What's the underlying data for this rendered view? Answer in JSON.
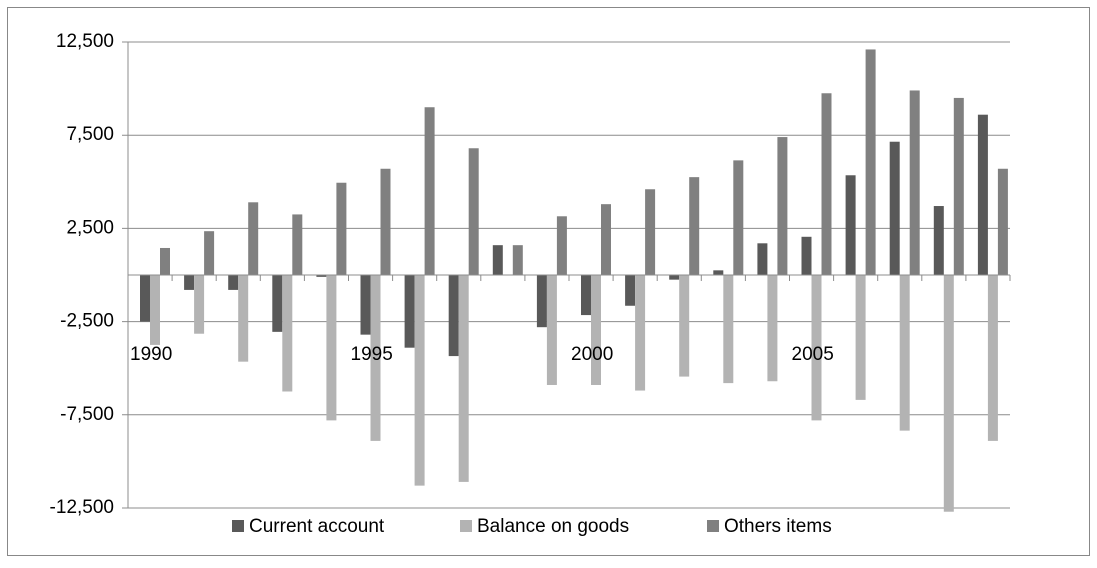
{
  "chart_data": {
    "type": "bar",
    "categories": [
      "1990",
      null,
      null,
      null,
      null,
      "1995",
      null,
      null,
      null,
      null,
      "2000",
      null,
      null,
      null,
      null,
      "2005",
      null,
      null,
      null,
      null
    ],
    "series": [
      {
        "name": "Current account",
        "color": "#595959",
        "values": [
          -2500,
          -800,
          -800,
          -3050,
          -100,
          -3200,
          -3900,
          -4350,
          1600,
          -2800,
          -2150,
          -1650,
          -250,
          250,
          1700,
          2050,
          5350,
          7150,
          3700,
          8600
        ]
      },
      {
        "name": "Balance on goods",
        "color": "#b3b3b3",
        "values": [
          -3750,
          -3150,
          -4650,
          -6250,
          -7800,
          -8900,
          -11300,
          -11100,
          0,
          -5900,
          -5900,
          -6200,
          -5450,
          -5800,
          -5700,
          -7800,
          -6700,
          -8350,
          -12700,
          -8900
        ]
      },
      {
        "name": "Others items",
        "color": "#808080",
        "values": [
          1450,
          2350,
          3900,
          3250,
          4950,
          5700,
          9000,
          6800,
          1600,
          3150,
          3800,
          4600,
          5250,
          6150,
          7400,
          9750,
          12100,
          9900,
          9500,
          5700
        ]
      }
    ],
    "ylim": [
      -12500,
      12500
    ],
    "yticks": [
      {
        "value": -12500,
        "label": "-12,500"
      },
      {
        "value": -7500,
        "label": "-7,500"
      },
      {
        "value": -2500,
        "label": "-2,500"
      },
      {
        "value": 2500,
        "label": "2,500"
      },
      {
        "value": 7500,
        "label": "7,500"
      },
      {
        "value": 12500,
        "label": "12,500"
      }
    ],
    "grid": true,
    "legend": "bottom"
  }
}
